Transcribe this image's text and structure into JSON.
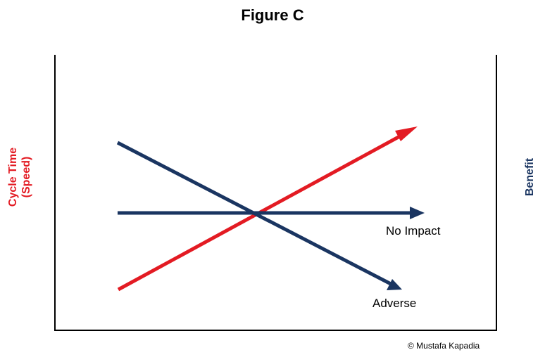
{
  "figure": {
    "title": "Figure C",
    "left_axis_label": [
      "Cycle Time",
      "(Speed)"
    ],
    "right_axis_label": "Benefit",
    "copyright": "© Mustafa Kapadia"
  },
  "colors": {
    "cycle_time": "#e31b23",
    "benefit": "#1a3561",
    "axes": "#000000"
  },
  "lines": [
    {
      "id": "cycle-time",
      "color": "#e31b23",
      "label": ""
    },
    {
      "id": "no-impact",
      "color": "#1a3561",
      "label": "No Impact"
    },
    {
      "id": "adverse",
      "color": "#1a3561",
      "label": "Adverse"
    }
  ]
}
